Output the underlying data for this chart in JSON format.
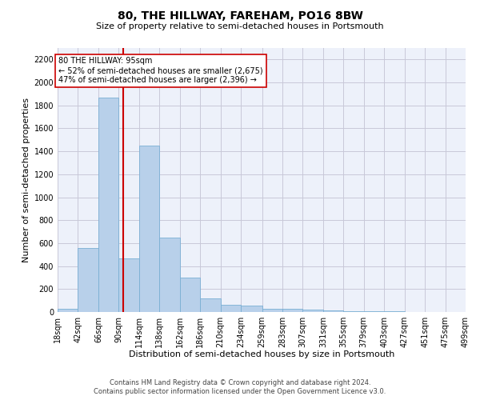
{
  "title1": "80, THE HILLWAY, FAREHAM, PO16 8BW",
  "title2": "Size of property relative to semi-detached houses in Portsmouth",
  "xlabel": "Distribution of semi-detached houses by size in Portsmouth",
  "ylabel": "Number of semi-detached properties",
  "footnote1": "Contains HM Land Registry data © Crown copyright and database right 2024.",
  "footnote2": "Contains public sector information licensed under the Open Government Licence v3.0.",
  "property_size": 95,
  "property_label": "80 THE HILLWAY: 95sqm",
  "annotation_line1": "← 52% of semi-detached houses are smaller (2,675)",
  "annotation_line2": "47% of semi-detached houses are larger (2,396) →",
  "bar_color": "#b8d0ea",
  "bar_edge_color": "#7aafd4",
  "vline_color": "#cc0000",
  "bins": [
    18,
    42,
    66,
    90,
    114,
    138,
    162,
    186,
    210,
    234,
    259,
    283,
    307,
    331,
    355,
    379,
    403,
    427,
    451,
    475,
    499
  ],
  "bin_labels": [
    "18sqm",
    "42sqm",
    "66sqm",
    "90sqm",
    "114sqm",
    "138sqm",
    "162sqm",
    "186sqm",
    "210sqm",
    "234sqm",
    "259sqm",
    "283sqm",
    "307sqm",
    "331sqm",
    "355sqm",
    "379sqm",
    "403sqm",
    "427sqm",
    "451sqm",
    "475sqm",
    "499sqm"
  ],
  "values": [
    30,
    560,
    1870,
    470,
    1450,
    650,
    300,
    120,
    65,
    55,
    30,
    25,
    20,
    15,
    10,
    7,
    5,
    3,
    2,
    1
  ],
  "ylim": [
    0,
    2300
  ],
  "yticks": [
    0,
    200,
    400,
    600,
    800,
    1000,
    1200,
    1400,
    1600,
    1800,
    2000,
    2200
  ],
  "grid_color": "#c8c8d8",
  "background_color": "#edf1fa",
  "title1_fontsize": 10,
  "title2_fontsize": 8,
  "ylabel_fontsize": 8,
  "xlabel_fontsize": 8,
  "tick_fontsize": 7,
  "footnote_fontsize": 6
}
